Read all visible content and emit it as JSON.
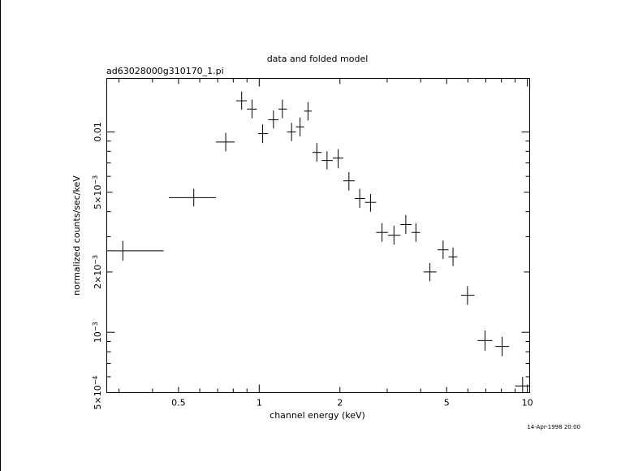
{
  "chart_data": {
    "type": "scatter",
    "title": "data and folded model",
    "subtitle": "ad63028000g310170_1.pi",
    "xlabel": "channel energy (keV)",
    "ylabel": "normalized counts/sec/keV",
    "timestamp": "14-Apr-1998 20:00",
    "x_scale": "log",
    "y_scale": "log",
    "xlim": [
      0.27,
      10.2
    ],
    "ylim": [
      0.0005,
      0.0185
    ],
    "grid": false,
    "legend": "none",
    "x_tick_labels": [
      {
        "value": 0.5,
        "label": "0.5"
      },
      {
        "value": 1,
        "label": "1"
      },
      {
        "value": 2,
        "label": "2"
      },
      {
        "value": 5,
        "label": "5"
      },
      {
        "value": 10,
        "label": "10"
      }
    ],
    "y_tick_labels": [
      {
        "value": 0.0005,
        "label": "5×10",
        "exp": "−4"
      },
      {
        "value": 0.001,
        "label": "10",
        "exp": "−3"
      },
      {
        "value": 0.002,
        "label": "2×10",
        "exp": "−3"
      },
      {
        "value": 0.005,
        "label": "5×10",
        "exp": "−3"
      },
      {
        "value": 0.01,
        "label": "0.01",
        "exp": ""
      }
    ],
    "series": [
      {
        "points": [
          {
            "x": 0.31,
            "xlo": 0.27,
            "xhi": 0.44,
            "y": 0.00255,
            "ylo": 0.00228,
            "yhi": 0.00286
          },
          {
            "x": 0.57,
            "xlo": 0.46,
            "xhi": 0.69,
            "y": 0.0047,
            "ylo": 0.00425,
            "yhi": 0.0052
          },
          {
            "x": 0.75,
            "xlo": 0.69,
            "xhi": 0.81,
            "y": 0.0089,
            "ylo": 0.008,
            "yhi": 0.0099
          },
          {
            "x": 0.86,
            "xlo": 0.82,
            "xhi": 0.9,
            "y": 0.0143,
            "ylo": 0.0129,
            "yhi": 0.0159
          },
          {
            "x": 0.94,
            "xlo": 0.9,
            "xhi": 0.98,
            "y": 0.013,
            "ylo": 0.0117,
            "yhi": 0.0145
          },
          {
            "x": 1.03,
            "xlo": 0.99,
            "xhi": 1.08,
            "y": 0.0098,
            "ylo": 0.0088,
            "yhi": 0.0109
          },
          {
            "x": 1.13,
            "xlo": 1.08,
            "xhi": 1.18,
            "y": 0.0115,
            "ylo": 0.0104,
            "yhi": 0.0128
          },
          {
            "x": 1.22,
            "xlo": 1.18,
            "xhi": 1.27,
            "y": 0.013,
            "ylo": 0.0117,
            "yhi": 0.0145
          },
          {
            "x": 1.32,
            "xlo": 1.27,
            "xhi": 1.37,
            "y": 0.01,
            "ylo": 0.009,
            "yhi": 0.0111
          },
          {
            "x": 1.42,
            "xlo": 1.37,
            "xhi": 1.47,
            "y": 0.0106,
            "ylo": 0.0095,
            "yhi": 0.0118
          },
          {
            "x": 1.52,
            "xlo": 1.47,
            "xhi": 1.57,
            "y": 0.0127,
            "ylo": 0.0114,
            "yhi": 0.0141
          },
          {
            "x": 1.64,
            "xlo": 1.58,
            "xhi": 1.71,
            "y": 0.0079,
            "ylo": 0.0071,
            "yhi": 0.0088
          },
          {
            "x": 1.79,
            "xlo": 1.71,
            "xhi": 1.88,
            "y": 0.0072,
            "ylo": 0.0065,
            "yhi": 0.008
          },
          {
            "x": 1.97,
            "xlo": 1.88,
            "xhi": 2.06,
            "y": 0.0074,
            "ylo": 0.0066,
            "yhi": 0.0082
          },
          {
            "x": 2.16,
            "xlo": 2.06,
            "xhi": 2.27,
            "y": 0.0057,
            "ylo": 0.0051,
            "yhi": 0.0063
          },
          {
            "x": 2.37,
            "xlo": 2.27,
            "xhi": 2.48,
            "y": 0.00465,
            "ylo": 0.00418,
            "yhi": 0.0052
          },
          {
            "x": 2.6,
            "xlo": 2.48,
            "xhi": 2.73,
            "y": 0.00445,
            "ylo": 0.004,
            "yhi": 0.0049
          },
          {
            "x": 2.87,
            "xlo": 2.73,
            "xhi": 3.02,
            "y": 0.00315,
            "ylo": 0.00283,
            "yhi": 0.0035
          },
          {
            "x": 3.18,
            "xlo": 3.02,
            "xhi": 3.36,
            "y": 0.00305,
            "ylo": 0.00274,
            "yhi": 0.0034
          },
          {
            "x": 3.52,
            "xlo": 3.36,
            "xhi": 3.7,
            "y": 0.00345,
            "ylo": 0.0031,
            "yhi": 0.00385
          },
          {
            "x": 3.84,
            "xlo": 3.7,
            "xhi": 3.98,
            "y": 0.00315,
            "ylo": 0.00283,
            "yhi": 0.0035
          },
          {
            "x": 4.33,
            "xlo": 4.1,
            "xhi": 4.58,
            "y": 0.002,
            "ylo": 0.0018,
            "yhi": 0.00222
          },
          {
            "x": 4.85,
            "xlo": 4.62,
            "xhi": 5.08,
            "y": 0.00258,
            "ylo": 0.00232,
            "yhi": 0.00287
          },
          {
            "x": 5.28,
            "xlo": 5.08,
            "xhi": 5.48,
            "y": 0.00238,
            "ylo": 0.00214,
            "yhi": 0.00265
          },
          {
            "x": 5.98,
            "xlo": 5.65,
            "xhi": 6.35,
            "y": 0.00153,
            "ylo": 0.00137,
            "yhi": 0.0017
          },
          {
            "x": 6.95,
            "xlo": 6.52,
            "xhi": 7.4,
            "y": 0.00091,
            "ylo": 0.00081,
            "yhi": 0.00102
          },
          {
            "x": 8.05,
            "xlo": 7.6,
            "xhi": 8.55,
            "y": 0.00085,
            "ylo": 0.00076,
            "yhi": 0.00095
          },
          {
            "x": 9.6,
            "xlo": 9.0,
            "xhi": 10.2,
            "y": 0.00054,
            "ylo": 0.00048,
            "yhi": 0.0006
          }
        ]
      }
    ]
  }
}
